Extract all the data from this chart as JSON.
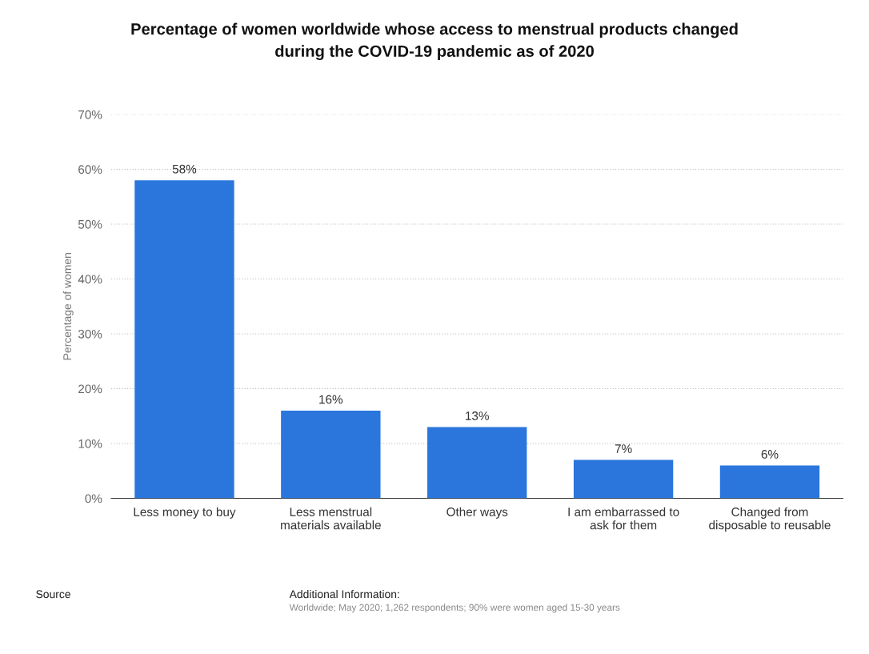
{
  "chart_data": {
    "type": "bar",
    "title": "Percentage of women worldwide whose access to menstrual products changed\nduring the COVID-19 pandemic as of 2020",
    "ylabel": "Percentage of women",
    "categories": [
      "Less money to buy",
      "Less menstrual\nmaterials available",
      "Other ways",
      "I am embarrassed to\nask for them",
      "Changed from\ndisposable to reusable"
    ],
    "values": [
      58,
      16,
      13,
      7,
      6
    ],
    "value_labels": [
      "58%",
      "16%",
      "13%",
      "7%",
      "6%"
    ],
    "color": "#2a76dd",
    "ylim": [
      0,
      70
    ],
    "yticks": [
      {
        "value": 0,
        "label": "0%"
      },
      {
        "value": 10,
        "label": "10%"
      },
      {
        "value": 20,
        "label": "20%"
      },
      {
        "value": 30,
        "label": "30%"
      },
      {
        "value": 40,
        "label": "40%"
      },
      {
        "value": 50,
        "label": "50%"
      },
      {
        "value": 60,
        "label": "60%"
      },
      {
        "value": 70,
        "label": "70%"
      }
    ],
    "grid": "y",
    "annotations": [
      "Source",
      "Additional Information:",
      "Worldwide; May 2020; 1,262 respondents; 90% were women aged 15-30 years"
    ]
  }
}
